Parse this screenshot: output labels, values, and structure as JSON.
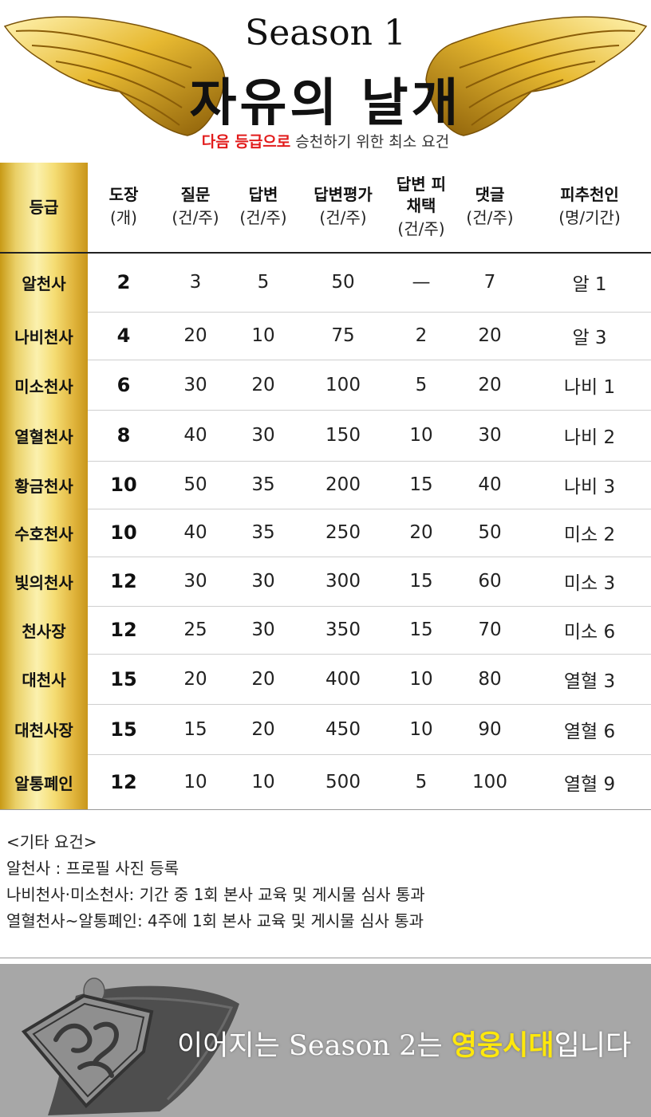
{
  "header": {
    "season": "Season 1",
    "title": "자유의 날개",
    "subtitle_highlight": "다음 등급으로",
    "subtitle_rest": " 승천하기 위한 최소 요건"
  },
  "table": {
    "columns": [
      {
        "line1": "등급",
        "line2": ""
      },
      {
        "line1": "도장",
        "line2": "(개)"
      },
      {
        "line1": "질문",
        "line2": "(건/주)"
      },
      {
        "line1": "답변",
        "line2": "(건/주)"
      },
      {
        "line1": "답변평가",
        "line2": "(건/주)"
      },
      {
        "line1": "답변 피채택",
        "line2": "(건/주)"
      },
      {
        "line1": "댓글",
        "line2": "(건/주)"
      },
      {
        "line1": "피추천인",
        "line2": "(명/기간)"
      }
    ],
    "rows": [
      [
        "알천사",
        "2",
        "3",
        "5",
        "50",
        "—",
        "7",
        "알 1"
      ],
      [
        "나비천사",
        "4",
        "20",
        "10",
        "75",
        "2",
        "20",
        "알 3"
      ],
      [
        "미소천사",
        "6",
        "30",
        "20",
        "100",
        "5",
        "20",
        "나비 1"
      ],
      [
        "열혈천사",
        "8",
        "40",
        "30",
        "150",
        "10",
        "30",
        "나비 2"
      ],
      [
        "황금천사",
        "10",
        "50",
        "35",
        "200",
        "15",
        "40",
        "나비 3"
      ],
      [
        "수호천사",
        "10",
        "40",
        "35",
        "250",
        "20",
        "50",
        "미소 2"
      ],
      [
        "빛의천사",
        "12",
        "30",
        "30",
        "300",
        "15",
        "60",
        "미소 3"
      ],
      [
        "천사장",
        "12",
        "25",
        "30",
        "350",
        "15",
        "70",
        "미소 6"
      ],
      [
        "대천사",
        "15",
        "20",
        "20",
        "400",
        "10",
        "80",
        "열혈 3"
      ],
      [
        "대천사장",
        "15",
        "15",
        "20",
        "450",
        "10",
        "90",
        "열혈 6"
      ],
      [
        "알통폐인",
        "12",
        "10",
        "10",
        "500",
        "5",
        "100",
        "열혈 9"
      ]
    ]
  },
  "notes": [
    "<기타 요건>",
    "알천사 : 프로필 사진 등록",
    "나비천사·미소천사: 기간 중 1회 본사 교육 및 게시물 심사 통과",
    "열혈천사~알통폐인: 4주에 1회 본사 교육 및 게시물 심사 통과"
  ],
  "footer": {
    "text_before": "이어지는 Season 2는 ",
    "text_highlight": "영웅시대",
    "text_after": "입니다"
  },
  "colors": {
    "accent_red": "#e21b1b",
    "accent_yellow": "#ffe80b",
    "gold": "#e8c34a",
    "footer_bg": "#a7a7a7"
  },
  "icons": {
    "wings": "golden-wings-icon",
    "emblem": "superhero-emblem-icon"
  }
}
